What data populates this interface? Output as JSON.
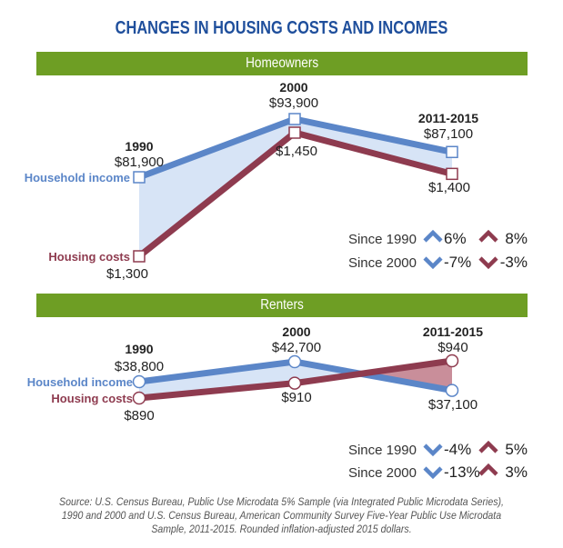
{
  "title": "CHANGES IN HOUSING COSTS AND INCOMES",
  "colors": {
    "title": "#1f4f9c",
    "band": "#6e9e24",
    "income": "#5b86c8",
    "costs": "#8e3b4f",
    "fill_income": "#d7e4f6",
    "fill_costs": "#c98e9a"
  },
  "chart_data": [
    {
      "type": "line",
      "title": "Homeowners",
      "categories": [
        "1990",
        "2000",
        "2011-2015"
      ],
      "series": [
        {
          "name": "Household income",
          "values": [
            81900,
            93900,
            87100
          ],
          "labels": [
            "$81,900",
            "$93,900",
            "$87,100"
          ]
        },
        {
          "name": "Housing costs",
          "values": [
            1300,
            1450,
            1400
          ],
          "labels": [
            "$1,300",
            "$1,450",
            "$1,400"
          ]
        }
      ],
      "changes": [
        {
          "label": "Since 1990",
          "income": "6%",
          "income_dir": "up",
          "costs": "8%",
          "costs_dir": "up"
        },
        {
          "label": "Since 2000",
          "income": "-7%",
          "income_dir": "down",
          "costs": "-3%",
          "costs_dir": "down"
        }
      ]
    },
    {
      "type": "line",
      "title": "Renters",
      "categories": [
        "1990",
        "2000",
        "2011-2015"
      ],
      "series": [
        {
          "name": "Household income",
          "values": [
            38800,
            42700,
            37100
          ],
          "labels": [
            "$38,800",
            "$42,700",
            "$37,100"
          ]
        },
        {
          "name": "Housing costs",
          "values": [
            890,
            910,
            940
          ],
          "labels": [
            "$890",
            "$910",
            "$940"
          ]
        }
      ],
      "changes": [
        {
          "label": "Since 1990",
          "income": "-4%",
          "income_dir": "down",
          "costs": "5%",
          "costs_dir": "up"
        },
        {
          "label": "Since 2000",
          "income": "-13%",
          "income_dir": "down",
          "costs": "3%",
          "costs_dir": "up"
        }
      ]
    }
  ],
  "source": "Source: U.S. Census Bureau, Public Use Microdata 5% Sample (via Integrated Public Microdata Series), 1990 and 2000 and U.S. Census Bureau, American Community Survey Five-Year Public Use Microdata Sample, 2011-2015. Rounded inflation-adjusted 2015 dollars."
}
